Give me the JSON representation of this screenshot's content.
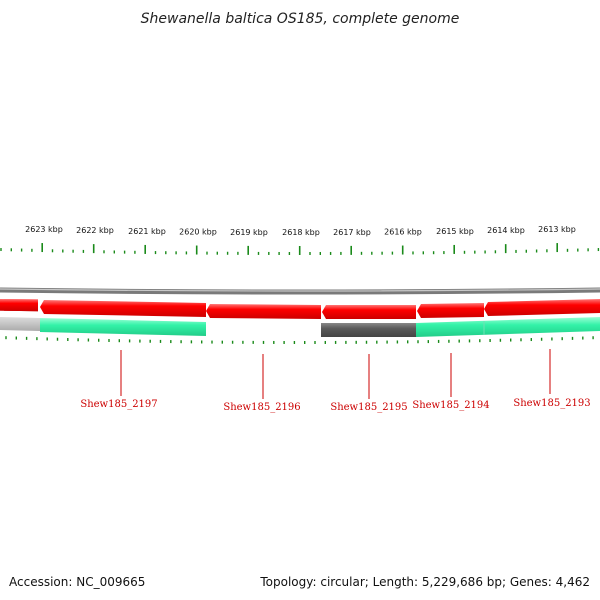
{
  "title": "Shewanella baltica OS185, complete genome",
  "footer": {
    "accession": "Accession: NC_009665",
    "summary": "Topology: circular; Length: 5,229,686 bp; Genes: 4,462"
  },
  "ruler": {
    "labels": [
      "2623 kbp",
      "2622 kbp",
      "2621 kbp",
      "2620 kbp",
      "2619 kbp",
      "2618 kbp",
      "2617 kbp",
      "2616 kbp",
      "2615 kbp",
      "2614 kbp",
      "2613 kbp"
    ]
  },
  "genes": [
    {
      "locus": "Shew185_2197"
    },
    {
      "locus": "Shew185_2196"
    },
    {
      "locus": "Shew185_2195"
    },
    {
      "locus": "Shew185_2194"
    },
    {
      "locus": "Shew185_2193"
    }
  ],
  "colors": {
    "cds": "#ff0000",
    "feature_teal": "#33ffaa",
    "feature_dark": "#555555",
    "feature_light": "#bbbbbb",
    "backbone": "#888888",
    "tick": "#1a8a1a",
    "label": "#cc0000"
  }
}
